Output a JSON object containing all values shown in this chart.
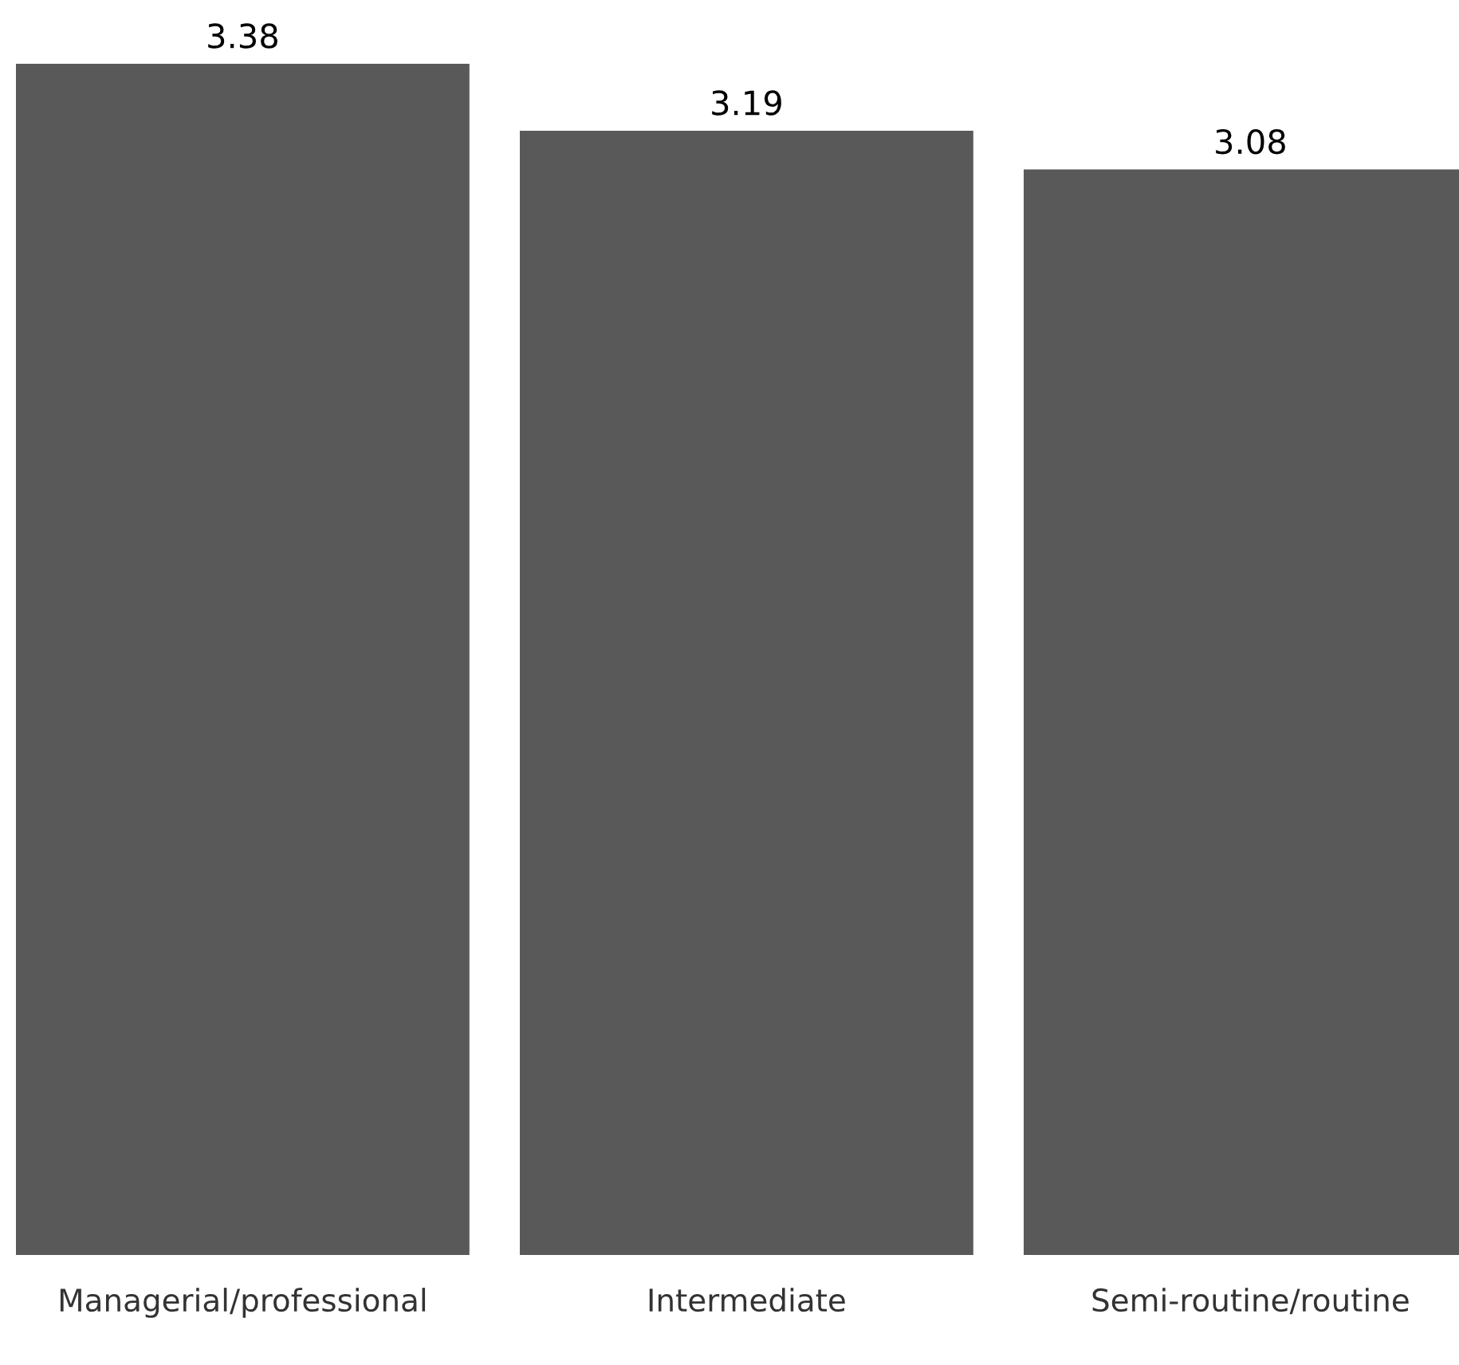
{
  "chart_data": {
    "type": "bar",
    "categories": [
      "Managerial/professional",
      "Intermediate",
      "Semi-routine/routine"
    ],
    "values": [
      3.38,
      3.19,
      3.08
    ],
    "color": "#595959",
    "data_labels": true
  }
}
